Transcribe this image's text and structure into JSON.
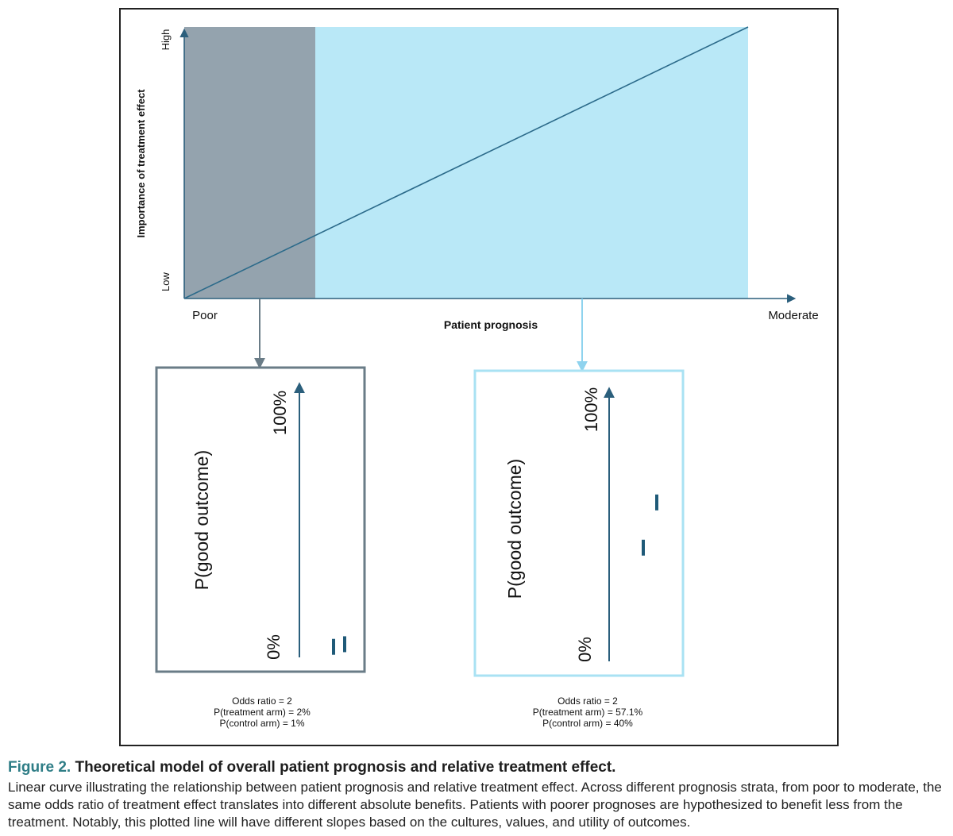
{
  "main_chart": {
    "ylabel": "Importance of treatment effect",
    "y_high": "High",
    "y_low": "Low",
    "xlabel": "Patient prognosis",
    "x_left": "Poor",
    "x_right": "Moderate",
    "colors": {
      "poor_region": "#94a3ae",
      "moderate_region": "#b9e8f7",
      "line": "#2b6a8a"
    }
  },
  "left_panel": {
    "ylabel": "P(good outcome)",
    "top_tick": "100%",
    "bottom_tick": "0%",
    "stats": [
      "Odds ratio = 2",
      "P(treatment arm) = 2%",
      "P(control arm) = 1%"
    ],
    "control_value": 0.01,
    "treatment_value": 0.02,
    "border_color": "#6a7c87"
  },
  "right_panel": {
    "ylabel": "P(good outcome)",
    "top_tick": "100%",
    "bottom_tick": "0%",
    "stats": [
      "Odds ratio = 2",
      "P(treatment arm) = 57.1%",
      "P(control arm) = 40%"
    ],
    "control_value": 0.4,
    "treatment_value": 0.571,
    "border_color": "#a9e2f3"
  },
  "caption": {
    "label": "Figure 2.",
    "title": "Theoretical model of overall patient prognosis and relative treatment effect.",
    "body": "Linear curve illustrating the relationship between patient prognosis and relative treatment effect. Across different prognosis strata, from poor to moderate, the same odds ratio of treatment effect translates into different absolute benefits. Patients with poorer prognoses are hypothesized to benefit less from the treatment. Notably, this plotted line will have different slopes based on the cultures, values, and utility of outcomes."
  }
}
